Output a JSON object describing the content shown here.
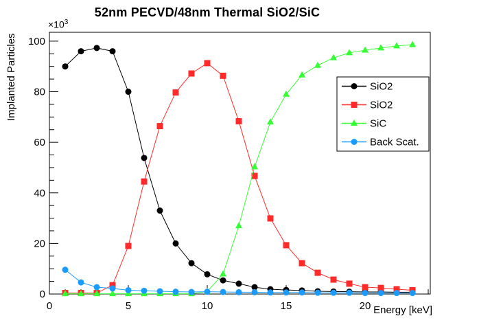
{
  "title": "52nm PECVD/48nm Thermal SiO2/SiC",
  "y_scale": {
    "base": "×10",
    "exp": "3"
  },
  "chart_data": {
    "type": "line",
    "title": "52nm PECVD/48nm Thermal SiO2/SiC",
    "xlabel": "Energy [keV]",
    "ylabel": "Implanted Particles",
    "y_unit_note": "values are in thousands of particles (axis shows ×10³)",
    "xlim": [
      0,
      24.13
    ],
    "ylim": [
      0,
      103.5
    ],
    "x_major_ticks": [
      0,
      5,
      10,
      15,
      20
    ],
    "x_minor_step": 1,
    "y_major_ticks": [
      0,
      20,
      40,
      60,
      80,
      100
    ],
    "y_minor_step": 5,
    "grid": false,
    "legend_position": "right-middle",
    "x": [
      1,
      2,
      3,
      4,
      5,
      6,
      7,
      8,
      9,
      10,
      11,
      12,
      13,
      14,
      15,
      16,
      17,
      18,
      19,
      20,
      21,
      22,
      23
    ],
    "series": [
      {
        "name": "SiO2",
        "legend": "SiO2",
        "color": "#000000",
        "marker": "circle",
        "values": [
          90,
          96,
          97.3,
          96,
          80,
          53.8,
          33,
          20,
          12.2,
          7.8,
          5.4,
          4.1,
          2.7,
          1.9,
          1.6,
          1.4,
          1.1,
          1.0,
          0.9,
          0.8,
          0.8,
          0.7,
          0.7
        ]
      },
      {
        "name": "SiO2",
        "legend": "SiO2",
        "color": "#ff2a2a",
        "marker": "square",
        "values": [
          0.4,
          0.4,
          0.4,
          3.5,
          19,
          44.5,
          66.4,
          79.7,
          87.2,
          91.3,
          86.3,
          68.3,
          46.7,
          29.9,
          19.3,
          12.2,
          8.4,
          5.7,
          4.1,
          2.7,
          2.4,
          1.9,
          1.5
        ]
      },
      {
        "name": "SiC",
        "legend": "SiC",
        "color": "#33ff33",
        "marker": "triangle",
        "values": [
          0.1,
          0.1,
          0.1,
          0.1,
          0.1,
          0.1,
          0.1,
          0.1,
          0.1,
          1.0,
          7.9,
          27,
          50.3,
          68,
          79,
          86.6,
          90.4,
          93.4,
          95.4,
          96.4,
          97.3,
          98.1,
          98.6
        ]
      },
      {
        "name": "Back Scat.",
        "legend": "Back Scat.",
        "color": "#1a9bff",
        "marker": "circle",
        "values": [
          9.6,
          4.6,
          2.7,
          2.2,
          1.5,
          1.3,
          1.1,
          0.9,
          0.8,
          0.9,
          0.8,
          0.7,
          0.7,
          0.6,
          0.6,
          0.6,
          0.5,
          0.5,
          0.5,
          0.4,
          0.4,
          0.4,
          0.4
        ]
      }
    ]
  }
}
